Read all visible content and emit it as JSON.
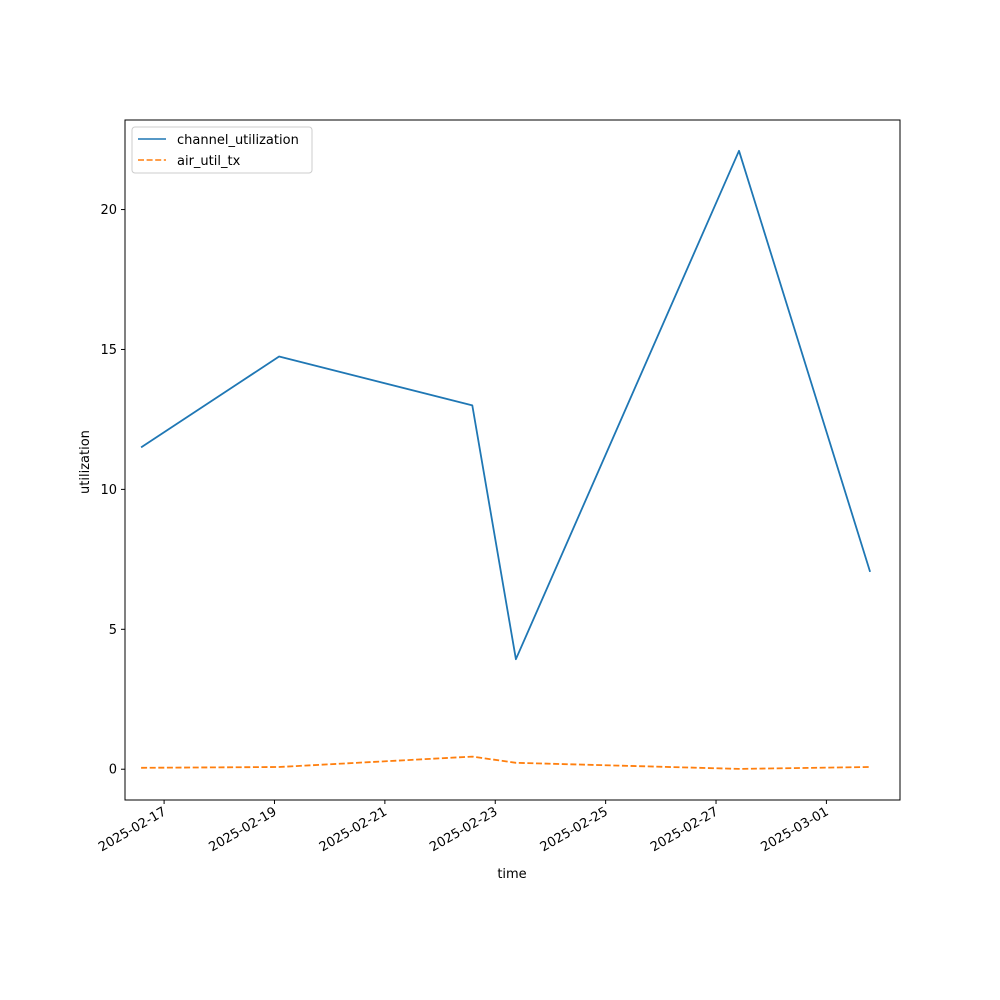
{
  "chart_data": {
    "type": "line",
    "title": "",
    "xlabel": "time",
    "ylabel": "utilization",
    "x_type": "date",
    "xlim": [
      "2025-02-16T07:00",
      "2025-03-02T08:00"
    ],
    "ylim": [
      -1.1,
      23.2
    ],
    "x_ticks": [
      "2025-02-17",
      "2025-02-19",
      "2025-02-21",
      "2025-02-23",
      "2025-02-25",
      "2025-02-27",
      "2025-03-01"
    ],
    "y_ticks": [
      0,
      5,
      10,
      15,
      20
    ],
    "grid": false,
    "legend_position": "top-left",
    "series": [
      {
        "name": "channel_utilization",
        "color": "#1f77b4",
        "style": "solid",
        "points": [
          {
            "x": "2025-02-16T14:00",
            "y": 11.5
          },
          {
            "x": "2025-02-19T02:00",
            "y": 14.75
          },
          {
            "x": "2025-02-22T14:00",
            "y": 13.0
          },
          {
            "x": "2025-02-23T09:00",
            "y": 3.93
          },
          {
            "x": "2025-02-27T10:00",
            "y": 22.1
          },
          {
            "x": "2025-03-01T19:00",
            "y": 7.05
          }
        ]
      },
      {
        "name": "air_util_tx",
        "color": "#ff7f0e",
        "style": "dashed",
        "points": [
          {
            "x": "2025-02-16T14:00",
            "y": 0.05
          },
          {
            "x": "2025-02-19T02:00",
            "y": 0.08
          },
          {
            "x": "2025-02-22T14:00",
            "y": 0.45
          },
          {
            "x": "2025-02-23T09:00",
            "y": 0.23
          },
          {
            "x": "2025-02-27T10:00",
            "y": 0.01
          },
          {
            "x": "2025-03-01T19:00",
            "y": 0.08
          }
        ]
      }
    ]
  }
}
